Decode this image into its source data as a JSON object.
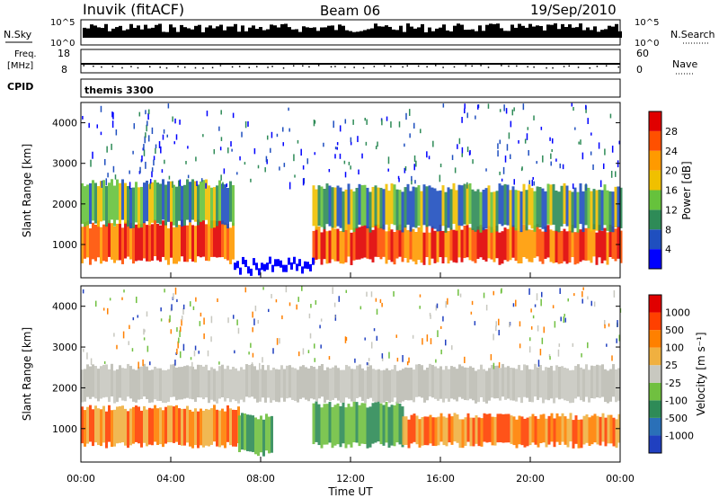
{
  "header": {
    "station": "Inuvik (fitACF)",
    "beam": "Beam 06",
    "date": "19/Sep/2010"
  },
  "noise_panel": {
    "left_label": "N.Sky",
    "right_label": "N.Search",
    "left_ticks": [
      "10^5",
      "10^0"
    ],
    "right_ticks": [
      "10^5",
      "10^0"
    ]
  },
  "freq_panel": {
    "left_label_line1": "Freq.",
    "left_label_line2": "[MHz]",
    "right_label": "Nave",
    "left_ticks": [
      "18",
      "8"
    ],
    "right_ticks": [
      "60",
      "0"
    ]
  },
  "cpid_panel": {
    "label": "CPID",
    "value": "themis 3300"
  },
  "power_panel": {
    "ylabel": "Slant Range [km]",
    "yticks": [
      "1000",
      "2000",
      "3000",
      "4000"
    ],
    "colorbar_label": "Power [dB]",
    "colorbar_ticks": [
      "4",
      "8",
      "12",
      "16",
      "20",
      "24",
      "28"
    ],
    "colorbar_colors": [
      "#0000ff",
      "#1f4fbf",
      "#2e8b57",
      "#66c23c",
      "#f0c000",
      "#ff9a00",
      "#ff5000",
      "#e00000"
    ]
  },
  "velocity_panel": {
    "ylabel": "Slant Range [km]",
    "yticks": [
      "1000",
      "2000",
      "3000",
      "4000"
    ],
    "colorbar_label": "Velocity [m s⁻¹]",
    "colorbar_ticks": [
      "1000",
      "500",
      "100",
      "25",
      "-25",
      "-100",
      "-500",
      "-1000"
    ],
    "colorbar_colors": [
      "#2040c0",
      "#2a70b8",
      "#2e8b57",
      "#70c040",
      "#c8c8c0",
      "#f0b040",
      "#ff8000",
      "#ff4000",
      "#e00000"
    ]
  },
  "xaxis": {
    "label": "Time UT",
    "ticks": [
      "00:00",
      "04:00",
      "08:00",
      "12:00",
      "16:00",
      "20:00",
      "00:00"
    ]
  },
  "chart_data": {
    "type": "heatmap",
    "x_range_hours": [
      0,
      24
    ],
    "y_range_km": [
      180,
      4500
    ],
    "power_bands": [
      {
        "t0": 0,
        "t1": 6.8,
        "r0": 600,
        "r1": 1500,
        "level": "high"
      },
      {
        "t0": 0,
        "t1": 6.8,
        "r0": 1500,
        "r1": 2500,
        "level": "medium"
      },
      {
        "t0": 10.3,
        "t1": 24,
        "r0": 600,
        "r1": 1400,
        "level": "high"
      },
      {
        "t0": 10.3,
        "t1": 24,
        "r0": 1400,
        "r1": 2400,
        "level": "medium"
      }
    ],
    "velocity_bands": [
      {
        "t0": 0,
        "t1": 7,
        "r0": 600,
        "r1": 1500,
        "class": "-100"
      },
      {
        "t0": 7,
        "t1": 8.5,
        "r0": 400,
        "r1": 1300,
        "class": "100"
      },
      {
        "t0": 10.3,
        "t1": 14.3,
        "r0": 600,
        "r1": 1600,
        "class": "100"
      },
      {
        "t0": 14.3,
        "t1": 24,
        "r0": 600,
        "r1": 1300,
        "class": "-100"
      },
      {
        "t0": 0,
        "t1": 24,
        "r0": 1700,
        "r1": 2500,
        "class": "-25"
      }
    ]
  }
}
